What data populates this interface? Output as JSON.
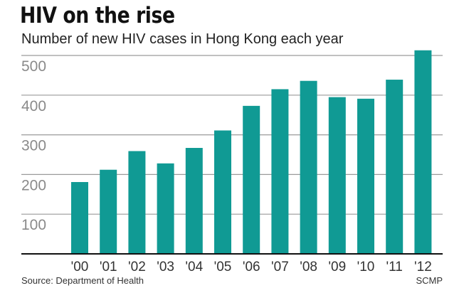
{
  "chart_data": {
    "type": "bar",
    "title": "HIV on the rise",
    "subtitle": "Number of new HIV cases in Hong Kong each year",
    "categories": [
      "'00",
      "'01",
      "'02",
      "'03",
      "'04",
      "'05",
      "'06",
      "'07",
      "'08",
      "'09",
      "'10",
      "'11",
      "'12"
    ],
    "values": [
      181,
      212,
      259,
      228,
      267,
      311,
      373,
      415,
      436,
      395,
      391,
      439,
      513
    ],
    "ylim": [
      0,
      500
    ],
    "yticks": [
      "100",
      "200",
      "300",
      "400",
      "500"
    ],
    "ytick_values": [
      100,
      200,
      300,
      400,
      500
    ],
    "xlabel": "",
    "ylabel": "",
    "grid": true,
    "colors": {
      "bar": "#109a94",
      "grid": "#9a9a9a",
      "axis": "#111111"
    }
  },
  "footer": {
    "source": "Source: Department of Health",
    "credit": "SCMP"
  }
}
